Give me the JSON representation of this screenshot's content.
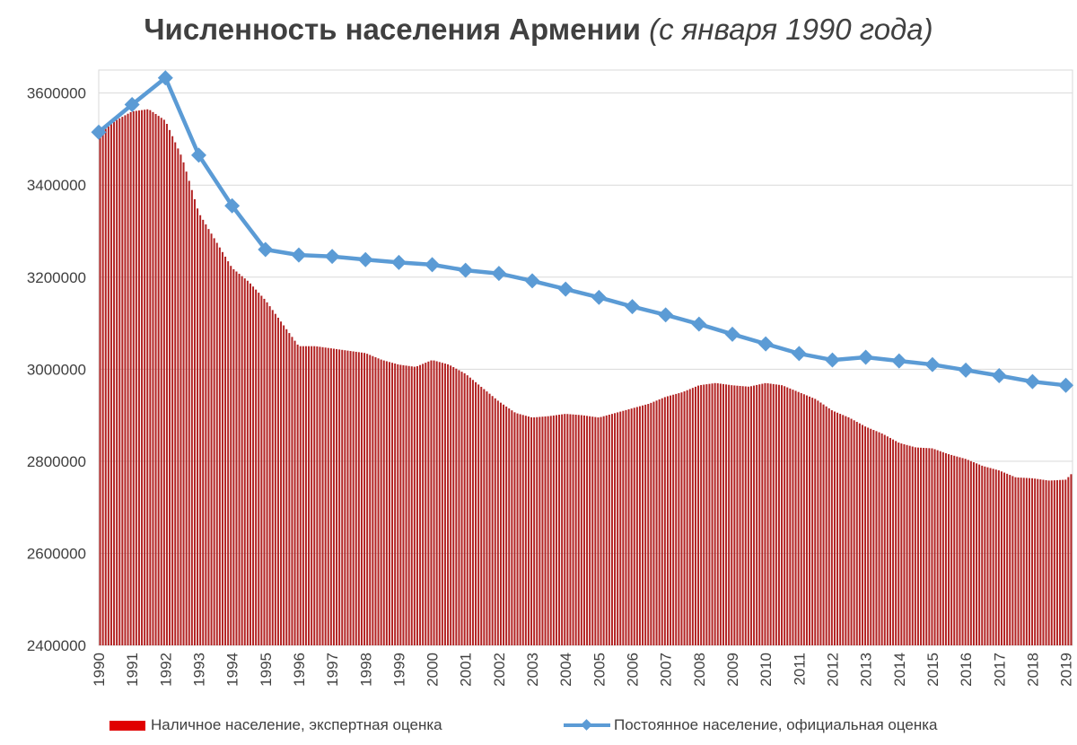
{
  "chart_data": {
    "type": "bar+line",
    "title": "Численность населения Армении",
    "subtitle": "(с января 1990 года)",
    "ylim": [
      2400000,
      3650000
    ],
    "y_ticks": [
      "2400000",
      "2600000",
      "2800000",
      "3000000",
      "3200000",
      "3400000",
      "3600000"
    ],
    "x_ticks": [
      "1990",
      "1991",
      "1992",
      "1993",
      "1994",
      "1995",
      "1996",
      "1997",
      "1998",
      "1999",
      "2000",
      "2001",
      "2002",
      "2003",
      "2004",
      "2005",
      "2006",
      "2007",
      "2008",
      "2009",
      "2010",
      "2011",
      "2012",
      "2013",
      "2014",
      "2015",
      "2016",
      "2017",
      "2018",
      "2019"
    ],
    "grid": true,
    "legend_position": "bottom",
    "series": [
      {
        "name": "Наличное население, экспертная оценка",
        "type": "bar",
        "color": "#b22222",
        "x": [
          1990,
          1990.5,
          1991,
          1991.5,
          1992,
          1992.5,
          1993,
          1993.5,
          1994,
          1994.5,
          1995,
          1995.5,
          1996,
          1996.5,
          1997,
          1997.5,
          1998,
          1998.5,
          1999,
          1999.5,
          2000,
          2000.5,
          2001,
          2001.5,
          2002,
          2002.5,
          2003,
          2003.5,
          2004,
          2004.5,
          2005,
          2005.5,
          2006,
          2006.5,
          2007,
          2007.5,
          2008,
          2008.5,
          2009,
          2009.5,
          2010,
          2010.5,
          2011,
          2011.5,
          2012,
          2012.5,
          2013,
          2013.5,
          2014,
          2014.5,
          2015,
          2015.5,
          2016,
          2016.5,
          2017,
          2017.5,
          2018,
          2018.5,
          2019,
          2019.2
        ],
        "values": [
          3510000,
          3540000,
          3560000,
          3565000,
          3540000,
          3460000,
          3340000,
          3280000,
          3220000,
          3190000,
          3150000,
          3100000,
          3050000,
          3050000,
          3045000,
          3040000,
          3035000,
          3020000,
          3010000,
          3005000,
          3020000,
          3010000,
          2990000,
          2960000,
          2930000,
          2905000,
          2895000,
          2898000,
          2903000,
          2900000,
          2895000,
          2905000,
          2915000,
          2925000,
          2940000,
          2950000,
          2965000,
          2970000,
          2965000,
          2962000,
          2970000,
          2965000,
          2950000,
          2935000,
          2910000,
          2895000,
          2875000,
          2860000,
          2840000,
          2830000,
          2828000,
          2815000,
          2805000,
          2790000,
          2780000,
          2765000,
          2763000,
          2758000,
          2760000,
          2775000
        ]
      },
      {
        "name": "Постоянное население, официальная оценка",
        "type": "line",
        "color": "#5b9bd5",
        "x": [
          1990,
          1991,
          1992,
          1993,
          1994,
          1995,
          1996,
          1997,
          1998,
          1999,
          2000,
          2001,
          2002,
          2003,
          2004,
          2005,
          2006,
          2007,
          2008,
          2009,
          2010,
          2011,
          2012,
          2013,
          2014,
          2015,
          2016,
          2017,
          2018,
          2019
        ],
        "values": [
          3515000,
          3575000,
          3633000,
          3465000,
          3355000,
          3260000,
          3248000,
          3245000,
          3238000,
          3232000,
          3227000,
          3215000,
          3208000,
          3192000,
          3174000,
          3156000,
          3136000,
          3118000,
          3098000,
          3076000,
          3055000,
          3034000,
          3020000,
          3026000,
          3018000,
          3010000,
          2998000,
          2986000,
          2973000,
          2965000
        ]
      }
    ]
  }
}
